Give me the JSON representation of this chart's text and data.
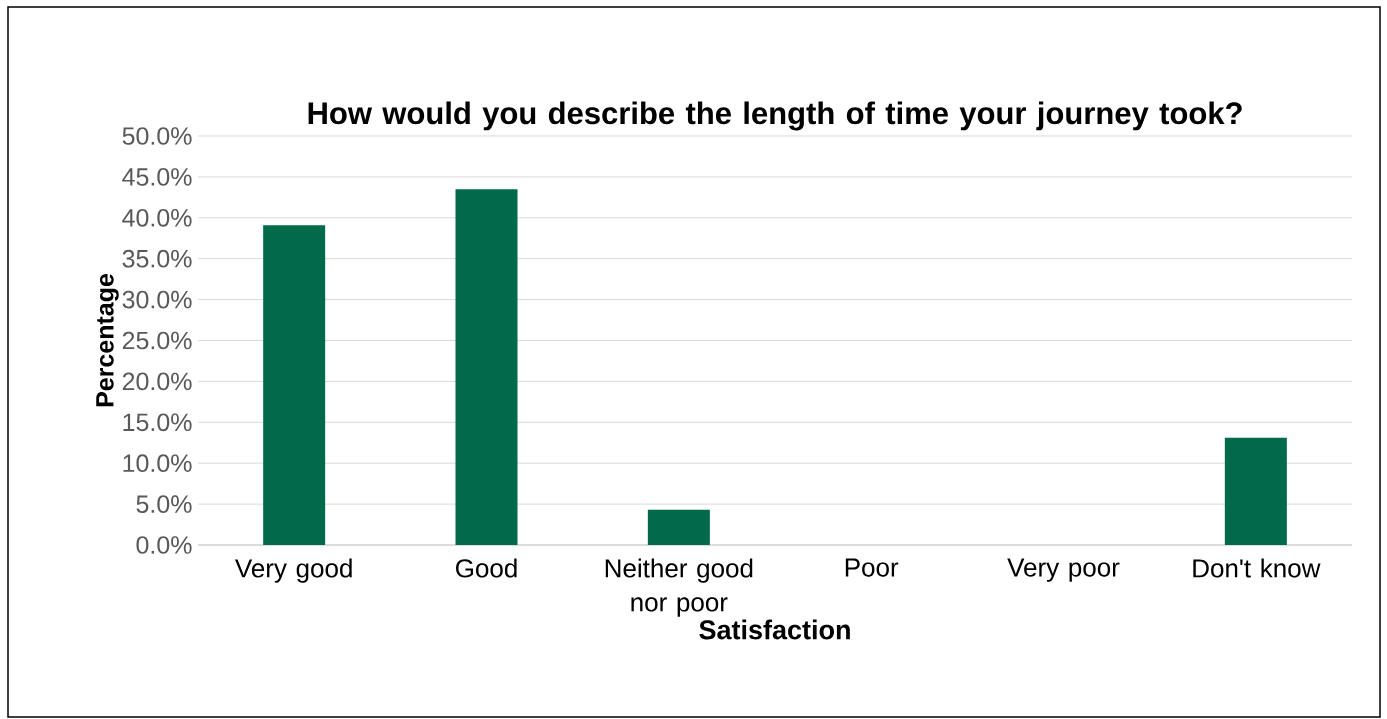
{
  "chart_data": {
    "type": "bar",
    "title": "How would you describe the length of time your journey took?",
    "xlabel": "Satisfaction",
    "ylabel": "Percentage",
    "categories": [
      "Very good",
      "Good",
      "Neither good nor poor",
      "Poor",
      "Very poor",
      "Don't know"
    ],
    "values": [
      39.1,
      43.5,
      4.3,
      0,
      0,
      13.1
    ],
    "color": "#006a4a",
    "ylim": [
      0,
      50
    ],
    "yticks": [
      {
        "value": 0,
        "label": "0.0%"
      },
      {
        "value": 5,
        "label": "5.0%"
      },
      {
        "value": 10,
        "label": "10.0%"
      },
      {
        "value": 15,
        "label": "15.0%"
      },
      {
        "value": 20,
        "label": "20.0%"
      },
      {
        "value": 25,
        "label": "25.0%"
      },
      {
        "value": 30,
        "label": "30.0%"
      },
      {
        "value": 35,
        "label": "35.0%"
      },
      {
        "value": 40,
        "label": "40.0%"
      },
      {
        "value": 45,
        "label": "45.0%"
      },
      {
        "value": 50,
        "label": "50.0%"
      }
    ],
    "grid": "y"
  }
}
